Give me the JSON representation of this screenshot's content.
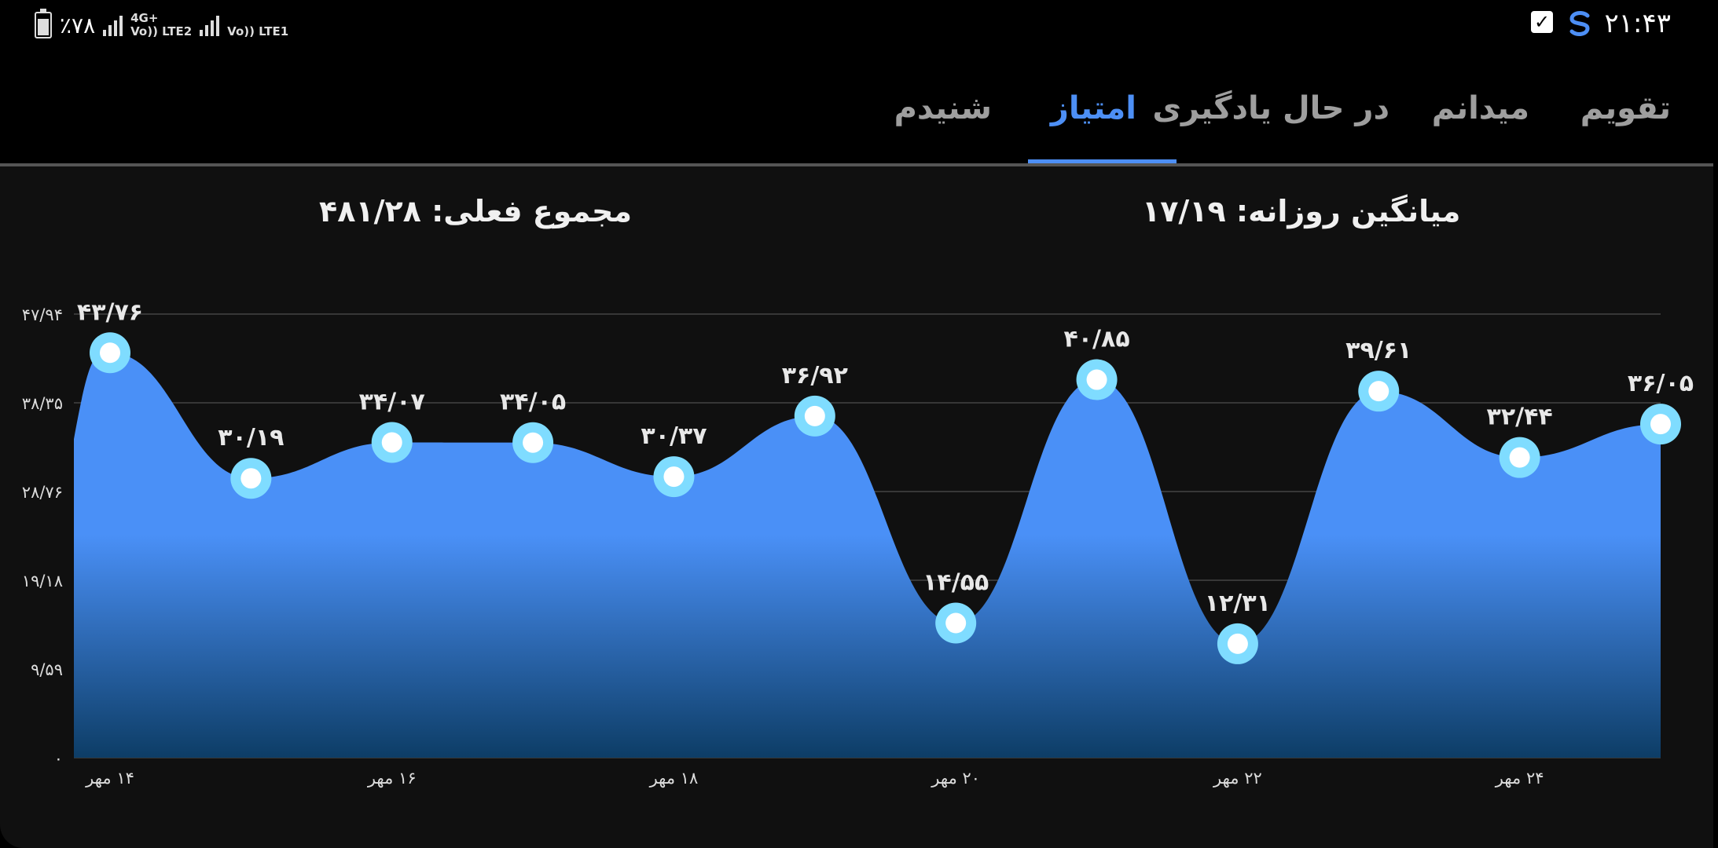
{
  "status_bar": {
    "time": "۲۱:۴۳",
    "battery": "٪۷۸",
    "sim2_network": "4G+",
    "sim2_label": "Vo)) LTE2",
    "sim1_label": "Vo)) LTE1"
  },
  "tabs": [
    {
      "label": "تقویم",
      "active": false
    },
    {
      "label": "میدانم",
      "active": false
    },
    {
      "label": "در حال یادگیری",
      "active": false
    },
    {
      "label": "امتیاز",
      "active": true
    },
    {
      "label": "شنیدم",
      "active": false
    }
  ],
  "stats": {
    "daily_average": "میانگین روزانه: ۱۷/۱۹",
    "current_total": "مجموع فعلی: ۴۸۱/۲۸"
  },
  "colors": {
    "accent": "#4d8ff5",
    "area_top": "#4a90f7",
    "area_bottom": "#0d3d66",
    "marker_ring": "#7fdcff"
  },
  "chart_data": {
    "type": "area",
    "yticks": [
      "۴۷/۹۴",
      "۳۸/۳۵",
      "۲۸/۷۶",
      "۱۹/۱۸",
      "۹/۵۹",
      "۰"
    ],
    "ylim": [
      0,
      47.94
    ],
    "points": [
      {
        "value": 43.76,
        "label": "۴۳/۷۶"
      },
      {
        "value": 30.19,
        "label": "۳۰/۱۹"
      },
      {
        "value": 34.07,
        "label": "۳۴/۰۷"
      },
      {
        "value": 34.05,
        "label": "۳۴/۰۵"
      },
      {
        "value": 30.37,
        "label": "۳۰/۳۷"
      },
      {
        "value": 36.92,
        "label": "۳۶/۹۲"
      },
      {
        "value": 14.55,
        "label": "۱۴/۵۵"
      },
      {
        "value": 40.85,
        "label": "۴۰/۸۵"
      },
      {
        "value": 12.31,
        "label": "۱۲/۳۱"
      },
      {
        "value": 39.61,
        "label": "۳۹/۶۱"
      },
      {
        "value": 32.44,
        "label": "۳۲/۴۴"
      },
      {
        "value": 36.05,
        "label": "۳۶/۰۵"
      }
    ],
    "x_labels": [
      {
        "index": 0,
        "label": "۱۴ مهر"
      },
      {
        "index": 2,
        "label": "۱۶ مهر"
      },
      {
        "index": 4,
        "label": "۱۸ مهر"
      },
      {
        "index": 6,
        "label": "۲۰ مهر"
      },
      {
        "index": 8,
        "label": "۲۲ مهر"
      },
      {
        "index": 10,
        "label": "۲۴ مهر"
      }
    ]
  }
}
